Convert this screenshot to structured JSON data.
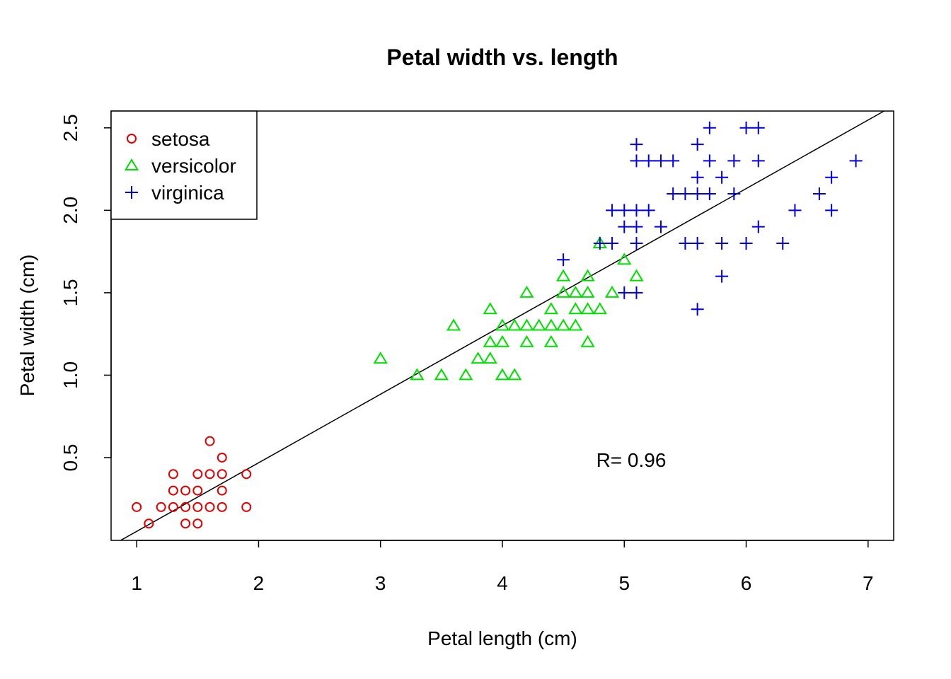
{
  "chart_data": {
    "type": "scatter",
    "title": "Petal width vs. length",
    "xlabel": "Petal length (cm)",
    "ylabel": "Petal width (cm)",
    "xlim": [
      0.79,
      7.21
    ],
    "ylim": [
      -0.002,
      2.602
    ],
    "xticks": [
      1,
      2,
      3,
      4,
      5,
      6,
      7
    ],
    "xtick_labels": [
      "1",
      "2",
      "3",
      "4",
      "5",
      "6",
      "7"
    ],
    "yticks": [
      0.5,
      1.0,
      1.5,
      2.0,
      2.5
    ],
    "ytick_labels": [
      "0.5",
      "1.0",
      "1.5",
      "2.0",
      "2.5"
    ],
    "grid": false,
    "legend_position": "top-left",
    "annotation": "R= 0.96",
    "fit_line": {
      "slope": 0.4158,
      "intercept": -0.3631
    },
    "series": [
      {
        "name": "setosa",
        "marker": "circle",
        "color": "#DF0000",
        "points": [
          [
            1.0,
            0.2
          ],
          [
            1.1,
            0.1
          ],
          [
            1.2,
            0.2
          ],
          [
            1.3,
            0.2
          ],
          [
            1.3,
            0.3
          ],
          [
            1.3,
            0.4
          ],
          [
            1.4,
            0.1
          ],
          [
            1.4,
            0.2
          ],
          [
            1.4,
            0.3
          ],
          [
            1.5,
            0.1
          ],
          [
            1.5,
            0.2
          ],
          [
            1.5,
            0.3
          ],
          [
            1.5,
            0.4
          ],
          [
            1.6,
            0.2
          ],
          [
            1.6,
            0.4
          ],
          [
            1.6,
            0.6
          ],
          [
            1.7,
            0.2
          ],
          [
            1.7,
            0.3
          ],
          [
            1.7,
            0.4
          ],
          [
            1.7,
            0.5
          ],
          [
            1.9,
            0.2
          ],
          [
            1.9,
            0.4
          ]
        ]
      },
      {
        "name": "versicolor",
        "marker": "triangle",
        "color": "#00E000",
        "points": [
          [
            3.0,
            1.1
          ],
          [
            3.3,
            1.0
          ],
          [
            3.5,
            1.0
          ],
          [
            3.6,
            1.3
          ],
          [
            3.7,
            1.0
          ],
          [
            3.8,
            1.1
          ],
          [
            3.9,
            1.1
          ],
          [
            3.9,
            1.2
          ],
          [
            3.9,
            1.4
          ],
          [
            4.0,
            1.0
          ],
          [
            4.0,
            1.2
          ],
          [
            4.0,
            1.3
          ],
          [
            4.1,
            1.0
          ],
          [
            4.1,
            1.3
          ],
          [
            4.2,
            1.2
          ],
          [
            4.2,
            1.3
          ],
          [
            4.2,
            1.5
          ],
          [
            4.3,
            1.3
          ],
          [
            4.4,
            1.2
          ],
          [
            4.4,
            1.3
          ],
          [
            4.4,
            1.4
          ],
          [
            4.5,
            1.3
          ],
          [
            4.5,
            1.5
          ],
          [
            4.5,
            1.6
          ],
          [
            4.6,
            1.3
          ],
          [
            4.6,
            1.4
          ],
          [
            4.6,
            1.5
          ],
          [
            4.7,
            1.2
          ],
          [
            4.7,
            1.4
          ],
          [
            4.7,
            1.5
          ],
          [
            4.7,
            1.6
          ],
          [
            4.8,
            1.4
          ],
          [
            4.8,
            1.8
          ],
          [
            4.9,
            1.5
          ],
          [
            5.0,
            1.7
          ],
          [
            5.1,
            1.6
          ]
        ]
      },
      {
        "name": "virginica",
        "marker": "plus",
        "color": "#0000E0",
        "points": [
          [
            4.5,
            1.7
          ],
          [
            4.8,
            1.8
          ],
          [
            4.9,
            1.8
          ],
          [
            4.9,
            2.0
          ],
          [
            5.0,
            1.5
          ],
          [
            5.0,
            1.9
          ],
          [
            5.0,
            2.0
          ],
          [
            5.1,
            1.5
          ],
          [
            5.1,
            1.8
          ],
          [
            5.1,
            1.9
          ],
          [
            5.1,
            2.0
          ],
          [
            5.1,
            2.3
          ],
          [
            5.1,
            2.4
          ],
          [
            5.2,
            2.0
          ],
          [
            5.2,
            2.3
          ],
          [
            5.3,
            1.9
          ],
          [
            5.3,
            2.3
          ],
          [
            5.4,
            2.1
          ],
          [
            5.4,
            2.3
          ],
          [
            5.5,
            1.8
          ],
          [
            5.5,
            2.1
          ],
          [
            5.6,
            1.4
          ],
          [
            5.6,
            1.8
          ],
          [
            5.6,
            2.1
          ],
          [
            5.6,
            2.2
          ],
          [
            5.6,
            2.4
          ],
          [
            5.7,
            2.1
          ],
          [
            5.7,
            2.3
          ],
          [
            5.7,
            2.5
          ],
          [
            5.8,
            1.6
          ],
          [
            5.8,
            1.8
          ],
          [
            5.8,
            2.2
          ],
          [
            5.9,
            2.1
          ],
          [
            5.9,
            2.3
          ],
          [
            6.0,
            1.8
          ],
          [
            6.0,
            2.5
          ],
          [
            6.1,
            1.9
          ],
          [
            6.1,
            2.3
          ],
          [
            6.1,
            2.5
          ],
          [
            6.3,
            1.8
          ],
          [
            6.4,
            2.0
          ],
          [
            6.6,
            2.1
          ],
          [
            6.7,
            2.0
          ],
          [
            6.7,
            2.2
          ],
          [
            6.9,
            2.3
          ]
        ]
      }
    ]
  }
}
